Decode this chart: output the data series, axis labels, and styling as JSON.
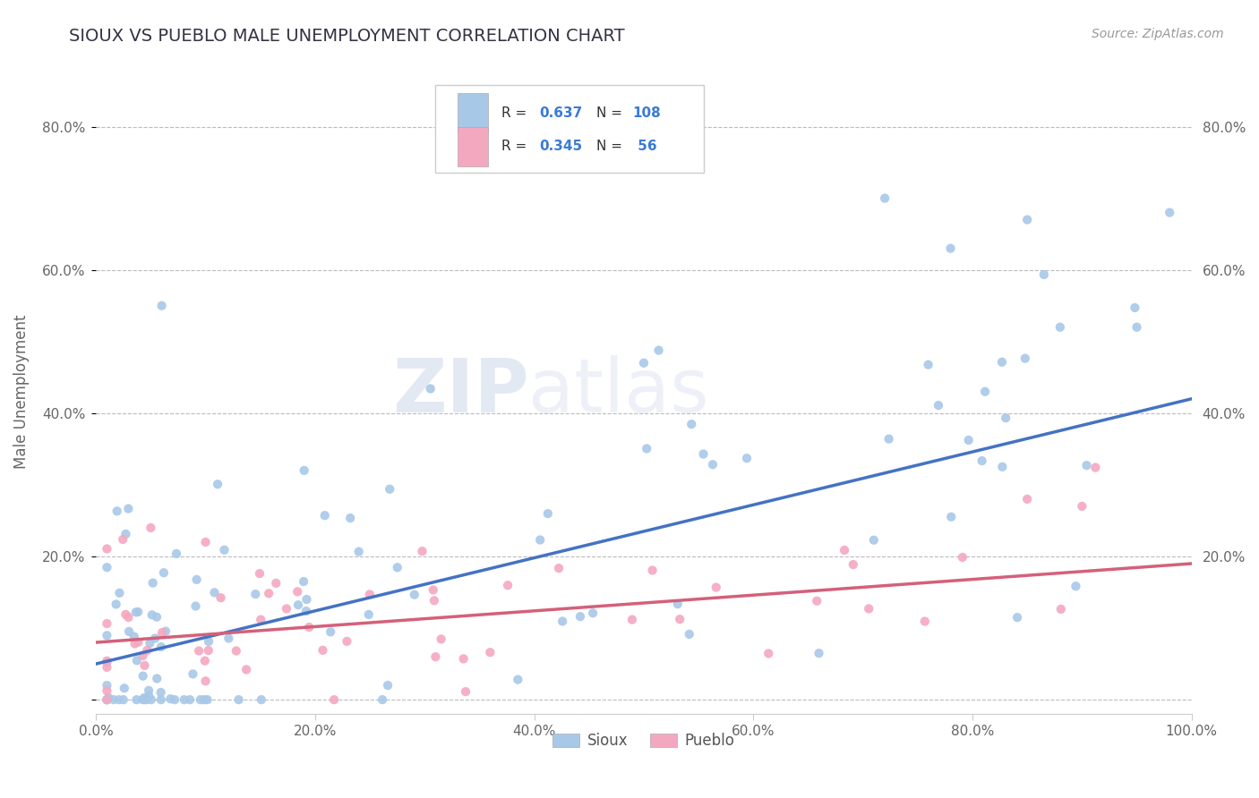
{
  "title": "SIOUX VS PUEBLO MALE UNEMPLOYMENT CORRELATION CHART",
  "source": "Source: ZipAtlas.com",
  "ylabel": "Male Unemployment",
  "xlim": [
    0.0,
    1.0
  ],
  "ylim": [
    -0.02,
    0.88
  ],
  "xticks": [
    0.0,
    0.2,
    0.4,
    0.6,
    0.8,
    1.0
  ],
  "xtick_labels": [
    "0.0%",
    "20.0%",
    "40.0%",
    "60.0%",
    "80.0%",
    "100.0%"
  ],
  "yticks": [
    0.0,
    0.2,
    0.4,
    0.6,
    0.8
  ],
  "ytick_labels": [
    "",
    "20.0%",
    "40.0%",
    "60.0%",
    "80.0%"
  ],
  "right_ytick_labels": [
    "",
    "20.0%",
    "40.0%",
    "60.0%",
    "80.0%"
  ],
  "sioux_R": 0.637,
  "sioux_N": 108,
  "pueblo_R": 0.345,
  "pueblo_N": 56,
  "sioux_color": "#a8c8e8",
  "pueblo_color": "#f4a8c0",
  "sioux_line_color": "#4472c4",
  "pueblo_line_color": "#d4607a",
  "title_color": "#333344",
  "title_fontsize": 14,
  "background_color": "#ffffff",
  "grid_color": "#bbbbbb",
  "sioux_line_x0": 0.0,
  "sioux_line_y0": 0.05,
  "sioux_line_x1": 1.0,
  "sioux_line_y1": 0.42,
  "pueblo_line_x0": 0.0,
  "pueblo_line_y0": 0.08,
  "pueblo_line_x1": 1.0,
  "pueblo_line_y1": 0.19
}
